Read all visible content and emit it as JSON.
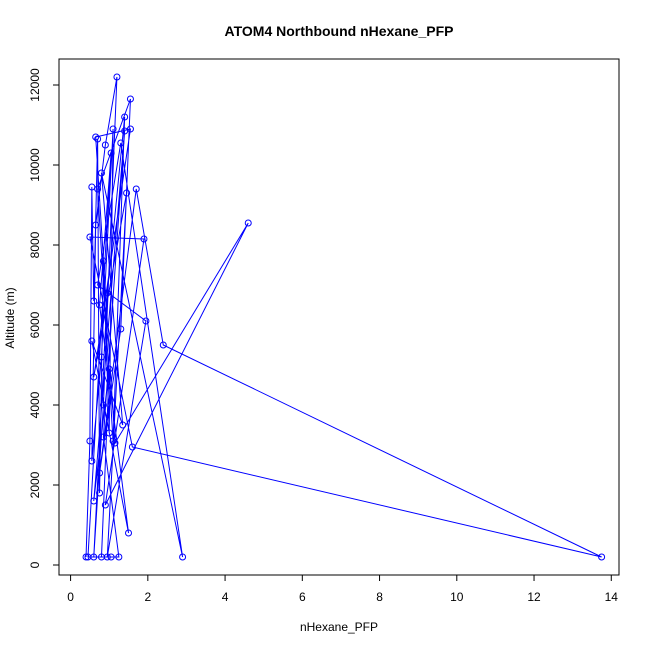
{
  "chart_data": {
    "type": "line",
    "title": "ATOM4 Northbound nHexane_PFP",
    "xlabel": "nHexane_PFP",
    "ylabel": "Altitude (m)",
    "xlim": [
      -0.3,
      14.2
    ],
    "ylim": [
      -250,
      12650
    ],
    "xticks": [
      0,
      2,
      4,
      6,
      8,
      10,
      12,
      14
    ],
    "yticks": [
      0,
      2000,
      4000,
      6000,
      8000,
      10000,
      12000
    ],
    "grid": false,
    "legend": "none",
    "series": [
      {
        "marker": "open-circle",
        "color": "#0000ff",
        "points": [
          [
            0.4,
            200
          ],
          [
            0.5,
            3100
          ],
          [
            0.55,
            9450
          ],
          [
            0.6,
            6600
          ],
          [
            0.7,
            10650
          ],
          [
            0.75,
            1800
          ],
          [
            0.85,
            7600
          ],
          [
            1.0,
            3300
          ],
          [
            1.1,
            10900
          ],
          [
            0.8,
            5200
          ],
          [
            0.55,
            2600
          ],
          [
            0.65,
            8500
          ],
          [
            0.9,
            10500
          ],
          [
            1.2,
            12200
          ],
          [
            0.85,
            4000
          ],
          [
            0.6,
            200
          ],
          [
            0.95,
            6800
          ],
          [
            1.4,
            11200
          ],
          [
            1.1,
            3100
          ],
          [
            0.7,
            9400
          ],
          [
            1.55,
            11650
          ],
          [
            1.3,
            5900
          ],
          [
            0.75,
            2300
          ],
          [
            1.7,
            9400
          ],
          [
            2.4,
            5500
          ],
          [
            13.75,
            200
          ],
          [
            1.6,
            2950
          ],
          [
            0.5,
            8200
          ],
          [
            1.9,
            8150
          ],
          [
            0.9,
            1500
          ],
          [
            4.6,
            8550
          ],
          [
            1.15,
            3050
          ],
          [
            0.65,
            10700
          ],
          [
            1.55,
            10900
          ],
          [
            0.6,
            4700
          ],
          [
            1.45,
            9300
          ],
          [
            0.95,
            200
          ],
          [
            1.95,
            6100
          ],
          [
            0.7,
            7000
          ],
          [
            1.3,
            10550
          ],
          [
            2.9,
            200
          ],
          [
            0.8,
            9800
          ],
          [
            1.35,
            3500
          ],
          [
            0.55,
            5600
          ],
          [
            1.5,
            800
          ],
          [
            0.75,
            6500
          ],
          [
            1.05,
            10300
          ],
          [
            0.45,
            200
          ],
          [
            1.25,
            200
          ],
          [
            0.85,
            3200
          ],
          [
            1.4,
            10850
          ],
          [
            0.6,
            1600
          ],
          [
            1.0,
            4900
          ],
          [
            0.8,
            200
          ],
          [
            1.05,
            200
          ]
        ]
      }
    ]
  }
}
